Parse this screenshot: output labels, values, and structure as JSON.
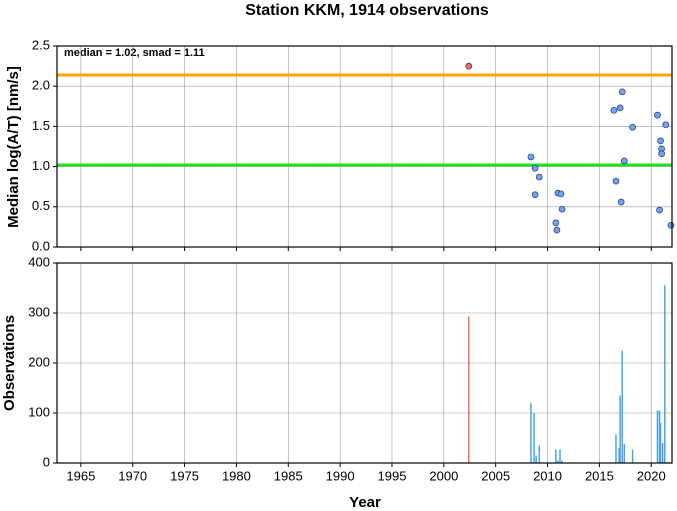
{
  "chart_data": [
    {
      "type": "scatter",
      "title": "Station KKM, 1914 observations",
      "ylabel": "Median log(A/T) [nm/s]",
      "annotation": "median = 1.02, smad = 1.11",
      "xlim": [
        1962.7,
        2022
      ],
      "xticks": [
        1965,
        1970,
        1975,
        1980,
        1985,
        1990,
        1995,
        2000,
        2005,
        2010,
        2015,
        2020
      ],
      "ylim": [
        0,
        2.5
      ],
      "yticks": [
        {
          "value": 0,
          "label": "0.0"
        },
        0.5,
        {
          "value": 1,
          "label": "1.0"
        },
        1.5,
        {
          "value": 2,
          "label": "2.0"
        },
        2.5
      ],
      "grid": true,
      "reference_lines": [
        {
          "value": 1.02,
          "color": "#22e022"
        },
        {
          "value": 2.14,
          "color": "#ffa500"
        }
      ],
      "series": [
        {
          "color": "#f26b5b",
          "x": [
            2002.4
          ],
          "values": [
            2.25
          ]
        },
        {
          "color": "#6fa2f0",
          "x": [
            2008.4,
            2008.8,
            2009.2,
            2008.8,
            2010.8,
            2010.9,
            2011.0,
            2011.3,
            2011.4,
            2016.4,
            2017.0,
            2017.2,
            2016.6,
            2017.1,
            2017.4,
            2018.2,
            2020.6,
            2020.8,
            2020.9,
            2021.0,
            2021.0,
            2021.4,
            2021.9
          ],
          "values": [
            1.12,
            0.98,
            0.87,
            0.65,
            0.3,
            0.21,
            0.67,
            0.66,
            0.47,
            1.7,
            1.73,
            1.93,
            0.82,
            0.56,
            1.07,
            1.49,
            1.64,
            0.46,
            1.32,
            1.22,
            1.16,
            1.52,
            0.27
          ]
        }
      ]
    },
    {
      "type": "bar",
      "ylabel": "Observations",
      "xlabel": "Year",
      "xlim": [
        1962.7,
        2022
      ],
      "xticks": [
        1965,
        1970,
        1975,
        1980,
        1985,
        1990,
        1995,
        2000,
        2005,
        2010,
        2015,
        2020
      ],
      "ylim": [
        0,
        400
      ],
      "yticks": [
        0,
        100,
        200,
        300,
        400
      ],
      "grid": true,
      "series": [
        {
          "color": "#f26b5b",
          "x": [
            2002.4
          ],
          "values": [
            293
          ]
        },
        {
          "color": "#4aa3e8",
          "x": [
            2008.4,
            2008.7,
            2008.9,
            2009.2,
            2010.8,
            2011.0,
            2011.2,
            2011.4,
            2016.6,
            2016.9,
            2017.0,
            2017.2,
            2017.4,
            2018.2,
            2020.6,
            2020.8,
            2020.9,
            2021.1,
            2021.3,
            2021.6
          ],
          "values": [
            120,
            100,
            15,
            35,
            27,
            5,
            27,
            5,
            57,
            30,
            135,
            225,
            38,
            27,
            105,
            105,
            80,
            40,
            355,
            2
          ]
        }
      ]
    }
  ]
}
